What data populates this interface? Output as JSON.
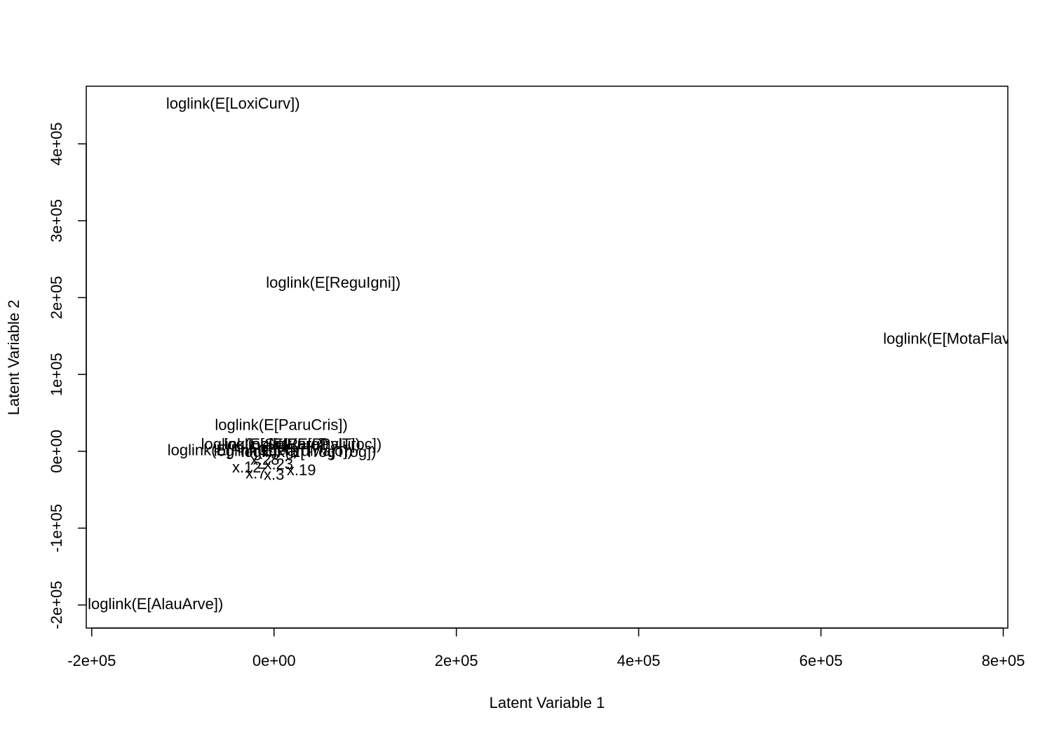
{
  "chart_data": {
    "type": "scatter",
    "title": "",
    "xlabel": "Latent Variable 1",
    "ylabel": "Latent Variable 2",
    "xlim": [
      -206000,
      805000
    ],
    "ylim": [
      -230000,
      475000
    ],
    "x_ticks": [
      {
        "value": -200000,
        "label": "-2e+05"
      },
      {
        "value": 0,
        "label": "0e+00"
      },
      {
        "value": 200000,
        "label": "2e+05"
      },
      {
        "value": 400000,
        "label": "4e+05"
      },
      {
        "value": 600000,
        "label": "6e+05"
      },
      {
        "value": 800000,
        "label": "8e+05"
      }
    ],
    "y_ticks": [
      {
        "value": -200000,
        "label": "-2e+05"
      },
      {
        "value": -100000,
        "label": "-1e+05"
      },
      {
        "value": 0,
        "label": "0e+00"
      },
      {
        "value": 100000,
        "label": "1e+05"
      },
      {
        "value": 200000,
        "label": "2e+05"
      },
      {
        "value": 300000,
        "label": "3e+05"
      },
      {
        "value": 400000,
        "label": "4e+05"
      }
    ],
    "grid": false,
    "legend": "none",
    "points": [
      {
        "x": -45000,
        "y": 451000,
        "label": "loglink(E[LoxiCurv])"
      },
      {
        "x": 65000,
        "y": 218000,
        "label": "loglink(E[ReguIgni])"
      },
      {
        "x": 743000,
        "y": 145000,
        "label": "loglink(E[MotaFlav])"
      },
      {
        "x": 8000,
        "y": 33000,
        "label": "loglink(E[ParuCris])"
      },
      {
        "x": 45000,
        "y": 8000,
        "label": "loglink(E[PhylTroc])"
      },
      {
        "x": 20000,
        "y": 8000,
        "label": "loglink(E[ParuPalu])"
      },
      {
        "x": -10000,
        "y": 8000,
        "label": "loglink(E[SittEuro])"
      },
      {
        "x": -45000,
        "y": 0,
        "label": "loglink(E[FrinCoel])"
      },
      {
        "x": 10000,
        "y": -1000,
        "label": "loglink(E[ParuMajo])"
      },
      {
        "x": 38000,
        "y": -2000,
        "label": "loglink(E[TrogTrog])"
      },
      {
        "x": -10000,
        "y": -12000,
        "label": "x.28"
      },
      {
        "x": 5000,
        "y": -18000,
        "label": "x.23"
      },
      {
        "x": 30000,
        "y": -26000,
        "label": "x.19"
      },
      {
        "x": -30000,
        "y": -22000,
        "label": "x.12"
      },
      {
        "x": -20000,
        "y": -30000,
        "label": "x.7"
      },
      {
        "x": 0,
        "y": -32000,
        "label": "x.3"
      },
      {
        "x": -130000,
        "y": -200000,
        "label": "loglink(E[AlauArve])"
      }
    ]
  }
}
